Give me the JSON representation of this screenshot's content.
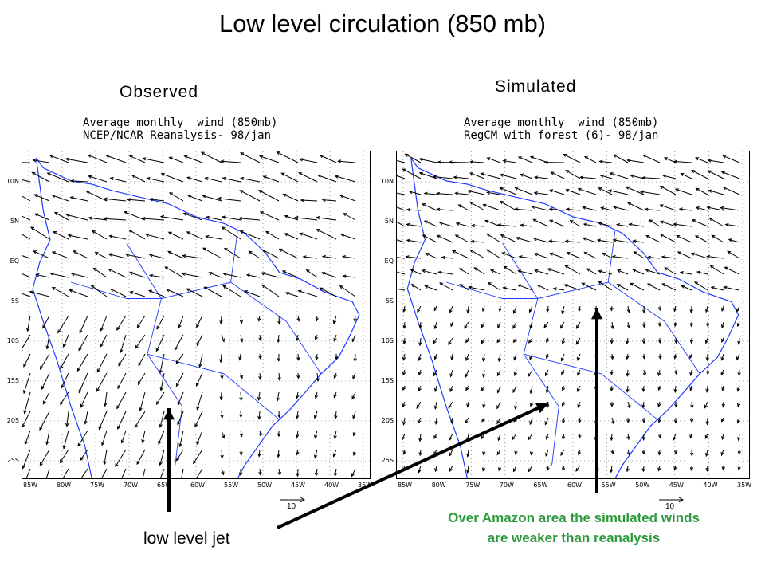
{
  "title": "Low level circulation (850 mb)",
  "panels": [
    {
      "id": "observed",
      "label": "Observed",
      "header_line1": "Average monthly  wind (850mb)",
      "header_line2": "NCEP/NCAR Reanalysis- 98/jan",
      "lat_labels": [
        "10N",
        "5N",
        "EQ",
        "5S",
        "10S",
        "15S",
        "20S",
        "25S"
      ],
      "lon_labels": [
        "85W",
        "80W",
        "75W",
        "70W",
        "65W",
        "60W",
        "55W",
        "50W",
        "45W",
        "40W",
        "35W"
      ],
      "reference_vector": "10"
    },
    {
      "id": "simulated",
      "label": "Simulated",
      "header_line1": "Average monthly  wind (850mb)",
      "header_line2": "RegCM with forest (6)- 98/jan",
      "lat_labels": [
        "10N",
        "5N",
        "EQ",
        "5S",
        "10S",
        "15S",
        "20S",
        "25S"
      ],
      "lon_labels": [
        "85W",
        "80W",
        "75W",
        "70W",
        "65W",
        "60W",
        "55W",
        "50W",
        "45W",
        "40W",
        "35W"
      ],
      "reference_vector": "10"
    }
  ],
  "annotations": {
    "low_level_jet": "low level jet",
    "amazon_note_line1": "Over Amazon area the simulated winds",
    "amazon_note_line2": "are weaker than reanalysis",
    "note_color": "#2e9a3e"
  },
  "colors": {
    "coastline": "#1e3cff",
    "vectors": "#000000",
    "grid": "#555555"
  }
}
